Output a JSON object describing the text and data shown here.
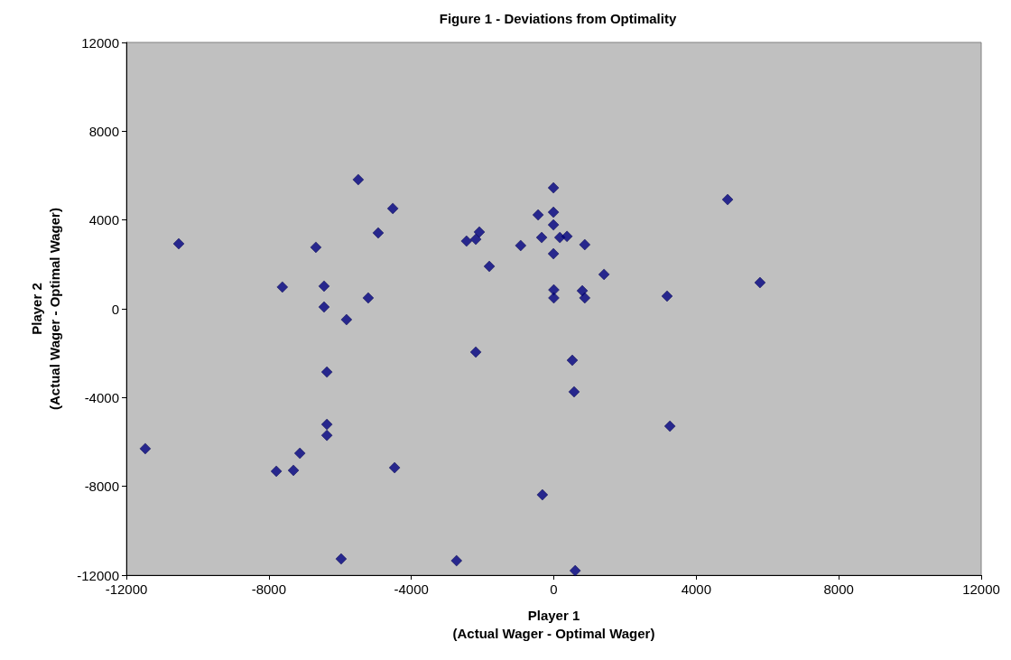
{
  "chart_data": {
    "type": "scatter",
    "title": "Figure 1 - Deviations from Optimality",
    "xlabel": "Player 1\n(Actual Wager - Optimal Wager)",
    "ylabel": "Player 2\n(Actual Wager - Optimal Wager)",
    "x": [
      -11470,
      -10530,
      -7790,
      -7620,
      -7310,
      -7130,
      -6680,
      -6450,
      -6450,
      -6370,
      -6370,
      -6370,
      -5970,
      -5820,
      -5490,
      -5210,
      -4930,
      -4520,
      -4470,
      -2730,
      -2450,
      -2190,
      -2190,
      -2090,
      -1810,
      -930,
      -440,
      -340,
      -320,
      -10,
      -10,
      -10,
      -10,
      0,
      0,
      170,
      370,
      520,
      570,
      600,
      800,
      870,
      870,
      1410,
      3180,
      3260,
      4880,
      5790
    ],
    "values": [
      -6300,
      2930,
      -7320,
      980,
      -7280,
      -6510,
      2770,
      1020,
      80,
      -2850,
      -5210,
      -5700,
      -11270,
      -490,
      5820,
      490,
      3420,
      4520,
      -7160,
      -11350,
      3050,
      3130,
      -1950,
      3460,
      1910,
      2850,
      4230,
      3210,
      -8380,
      5450,
      4350,
      3780,
      2480,
      850,
      490,
      3210,
      3260,
      -2320,
      -3740,
      -11800,
      810,
      2890,
      490,
      1550,
      570,
      -5290,
      4920,
      1180
    ],
    "color": "#000080",
    "marker": "diamond",
    "grid": false,
    "xlim": [
      -12000,
      12000
    ],
    "xticks": [
      -12000,
      -8000,
      -4000,
      0,
      4000,
      8000,
      12000
    ],
    "ylim": [
      -12000,
      12000
    ],
    "yticks": [
      -12000,
      -8000,
      -4000,
      0,
      4000,
      8000,
      12000
    ]
  }
}
